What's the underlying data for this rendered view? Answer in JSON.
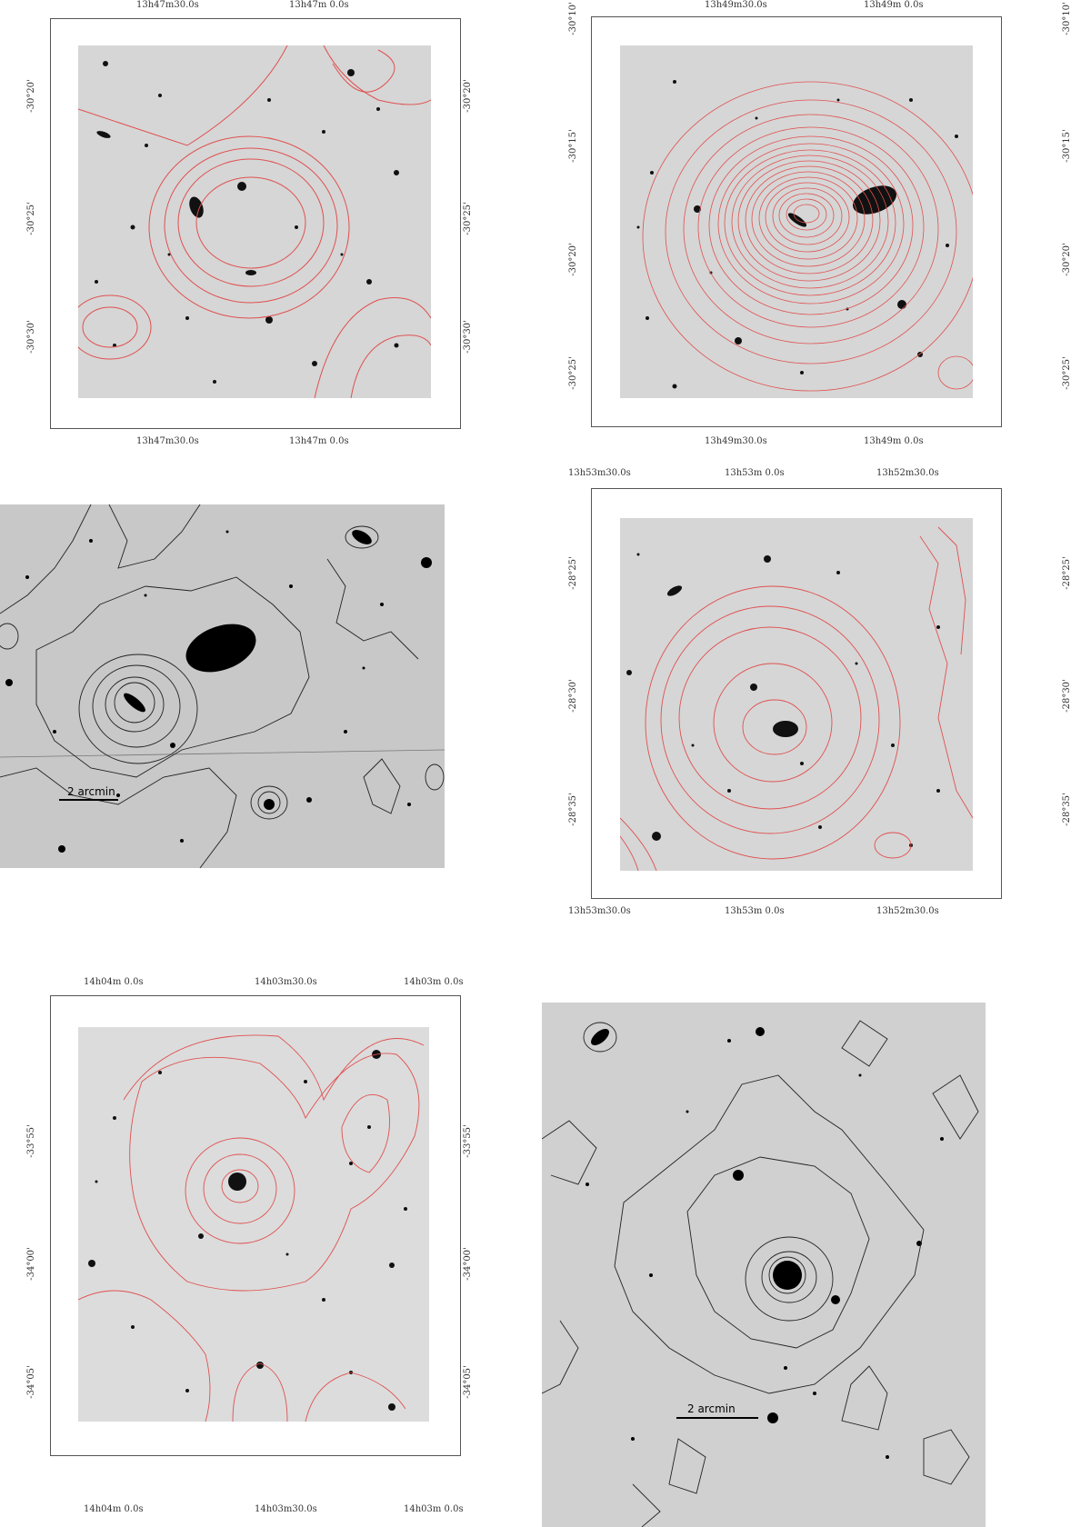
{
  "panels": [
    {
      "id": "p1",
      "top_ra_labels": [
        "13h47m30.0s",
        "13h47m 0.0s"
      ],
      "bottom_ra_labels": [
        "13h47m30.0s",
        "13h47m 0.0s"
      ],
      "left_dec_labels": [
        "-30°20'",
        "-30°25'",
        "-30°30'"
      ],
      "right_dec_labels": [
        "-30°20'",
        "-30°25'",
        "-30°30'"
      ],
      "contour_color": "#e05050"
    },
    {
      "id": "p2",
      "top_ra_labels": [
        "13h49m30.0s",
        "13h49m 0.0s"
      ],
      "bottom_ra_labels": [
        "13h49m30.0s",
        "13h49m 0.0s"
      ],
      "left_dec_labels": [
        "-30°10'",
        "-30°15'",
        "-30°20'",
        "-30°25'"
      ],
      "right_dec_labels": [
        "-30°10'",
        "-30°15'",
        "-30°20'",
        "-30°25'"
      ],
      "contour_color": "#e05050"
    },
    {
      "id": "p3",
      "scale_bar": "2 arcmin",
      "contour_color": "#222222"
    },
    {
      "id": "p4",
      "top_ra_labels": [
        "13h53m30.0s",
        "13h53m 0.0s",
        "13h52m30.0s"
      ],
      "bottom_ra_labels": [
        "13h53m30.0s",
        "13h53m 0.0s",
        "13h52m30.0s"
      ],
      "left_dec_labels": [
        "-28°25'",
        "-28°30'",
        "-28°35'"
      ],
      "right_dec_labels": [
        "-28°25'",
        "-28°30'",
        "-28°35'"
      ],
      "contour_color": "#e05050"
    },
    {
      "id": "p5",
      "top_ra_labels": [
        "14h04m 0.0s",
        "14h03m30.0s",
        "14h03m 0.0s"
      ],
      "bottom_ra_labels": [
        "14h04m 0.0s",
        "14h03m30.0s",
        "14h03m 0.0s"
      ],
      "left_dec_labels": [
        "-33°55'",
        "-34°00'",
        "-34°05'"
      ],
      "right_dec_labels": [
        "-33°55'",
        "-34°00'",
        "-34°05'"
      ],
      "contour_color": "#e05050"
    },
    {
      "id": "p6",
      "scale_bar": "2 arcmin",
      "contour_color": "#222222"
    }
  ]
}
